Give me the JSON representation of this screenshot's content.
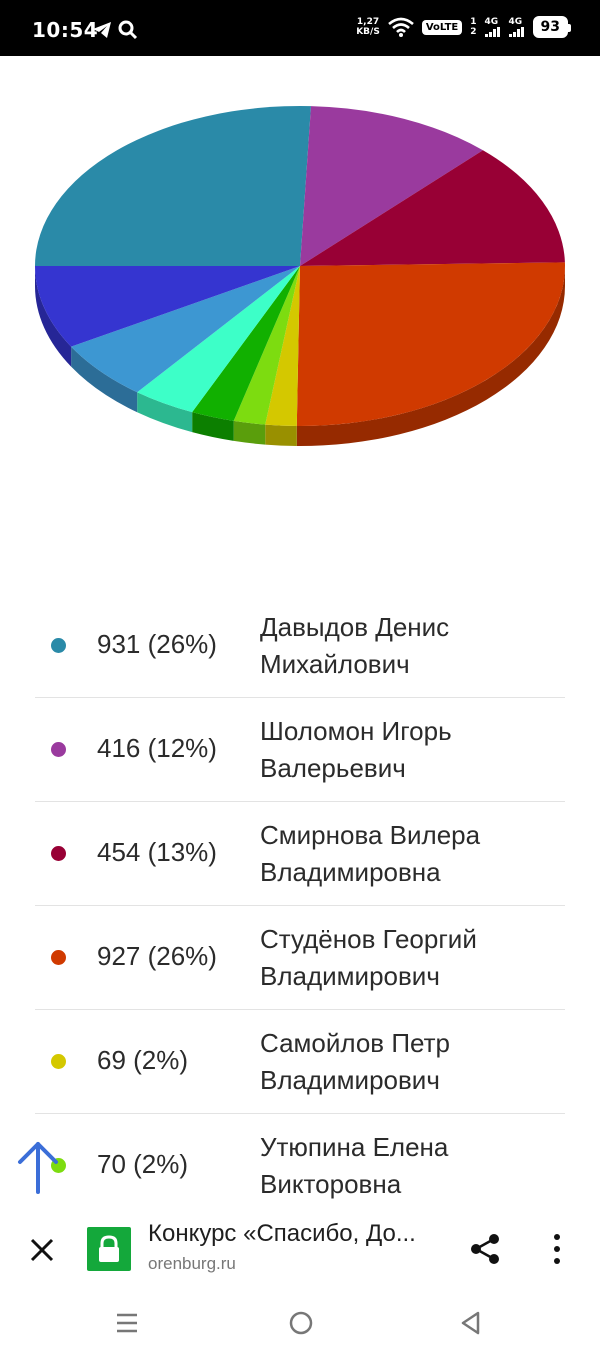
{
  "status_bar": {
    "time": "10:54",
    "speed_top": "1,27",
    "speed_bottom": "KB/S",
    "volte": "VoLTE",
    "sim1_label": "4G",
    "sim2_label": "4G",
    "battery": "93",
    "icons": [
      "telegram-icon",
      "search-icon",
      "wifi-icon",
      "signal-icon",
      "battery-icon"
    ]
  },
  "chart_data": {
    "type": "pie",
    "series": [
      {
        "value": 931,
        "color": "#2a8aa8"
      },
      {
        "value": 416,
        "color": "#9a3a9e"
      },
      {
        "value": 454,
        "color": "#980035"
      },
      {
        "value": 927,
        "color": "#d03a00"
      },
      {
        "value": 69,
        "color": "#d4c800"
      },
      {
        "value": 70,
        "color": "#7ddc10"
      },
      {
        "value": 96,
        "color": "#11b000"
      },
      {
        "value": 140,
        "color": "#3dffc8"
      },
      {
        "value": 220,
        "color": "#3d97d2"
      },
      {
        "value": 305,
        "color": "#3535d0"
      }
    ]
  },
  "legend": [
    {
      "value": "931 (26%)",
      "name": "Давыдов Денис Михайлович",
      "color": "#2a8aa8"
    },
    {
      "value": "416 (12%)",
      "name": "Шоломон Игорь Валерьевич",
      "color": "#9a3a9e"
    },
    {
      "value": "454 (13%)",
      "name": "Смирнова Вилера Владимировна",
      "color": "#980035"
    },
    {
      "value": "927 (26%)",
      "name": "Студёнов Георгий Владимирович",
      "color": "#d03a00"
    },
    {
      "value": "69 (2%)",
      "name": "Самойлов Петр Владимирович",
      "color": "#d4c800"
    },
    {
      "value": "70 (2%)",
      "name": "Утюпина Елена Викторовна",
      "color": "#7ddc10"
    }
  ],
  "browser_bar": {
    "title": "Конкурс «Спасибо, До...",
    "url": "orenburg.ru"
  }
}
